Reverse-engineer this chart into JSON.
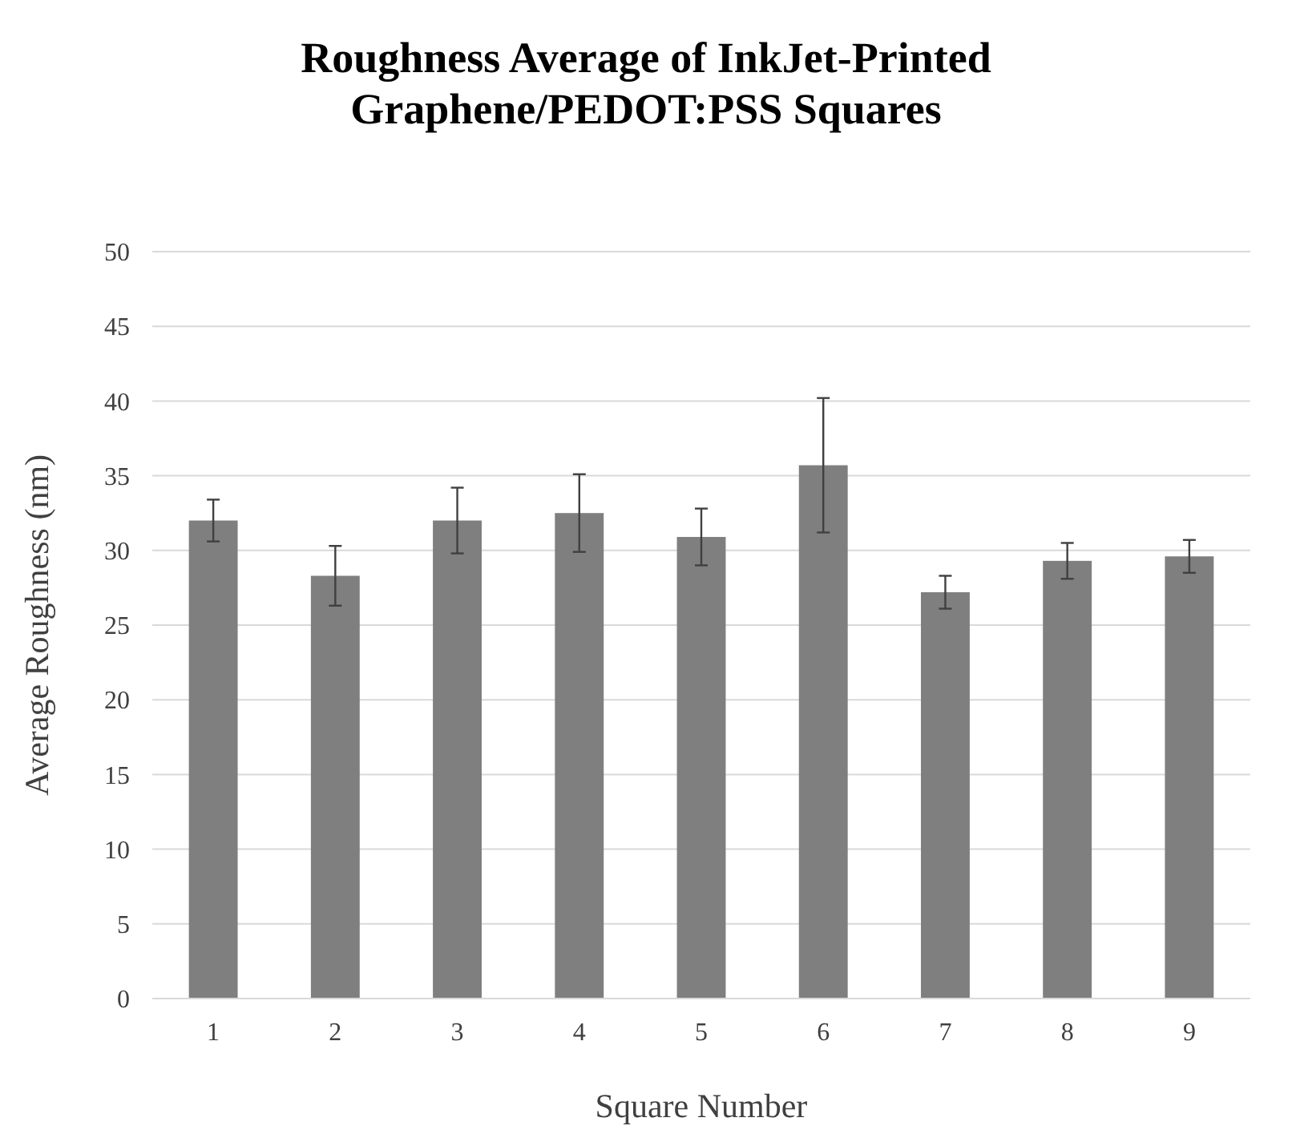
{
  "chart_data": {
    "type": "bar",
    "title": "Roughness Average of InkJet-Printed Graphene/PEDOT:PSS Squares",
    "xlabel": "Square Number",
    "ylabel": "Average Roughness (nm)",
    "categories": [
      "1",
      "2",
      "3",
      "4",
      "5",
      "6",
      "7",
      "8",
      "9"
    ],
    "values": [
      32.0,
      28.3,
      32.0,
      32.5,
      30.9,
      35.7,
      27.2,
      29.3,
      29.6
    ],
    "errors": [
      1.4,
      2.0,
      2.2,
      2.6,
      1.9,
      4.5,
      1.1,
      1.2,
      1.1
    ],
    "color": "#7f7f7f",
    "ylim": [
      0,
      50
    ],
    "yticks": [
      0,
      5,
      10,
      15,
      20,
      25,
      30,
      35,
      40,
      45,
      50
    ],
    "grid": "y"
  }
}
